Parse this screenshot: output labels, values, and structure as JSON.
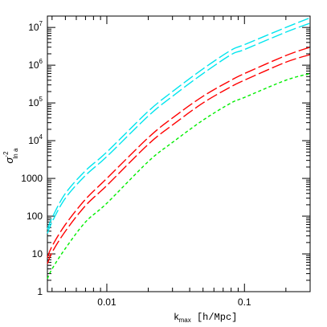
{
  "chart_data": {
    "type": "line",
    "xscale": "log",
    "yscale": "log",
    "xlim": [
      0.0037,
      0.3
    ],
    "ylim": [
      1,
      20000000
    ],
    "grid": false,
    "legend": "none",
    "xlabel": {
      "main": "k",
      "sub": "max",
      "rest": " [h/Mpc]"
    },
    "ylabel": {
      "main": "σ",
      "sub": "ln a",
      "sup": "-2"
    },
    "x_ticks": [
      {
        "value": 0.01,
        "label": "0.01"
      },
      {
        "value": 0.1,
        "label": "0.1"
      }
    ],
    "y_ticks": [
      {
        "value": 1,
        "label": "1"
      },
      {
        "value": 10,
        "label": "10"
      },
      {
        "value": 100,
        "label": "100"
      },
      {
        "value": 1000,
        "label": "1000"
      },
      {
        "value": 10000,
        "label": "10",
        "exp": "4"
      },
      {
        "value": 100000,
        "label": "10",
        "exp": "5"
      },
      {
        "value": 1000000,
        "label": "10",
        "exp": "6"
      },
      {
        "value": 10000000,
        "label": "10",
        "exp": "7"
      }
    ],
    "series": [
      {
        "color": "#00e5ee",
        "dash": "long",
        "x": [
          0.0037,
          0.004,
          0.005,
          0.007,
          0.01,
          0.02,
          0.03,
          0.05,
          0.08,
          0.1,
          0.2,
          0.3
        ],
        "y": [
          45,
          90,
          400,
          1600,
          5000,
          60000,
          200000,
          800000,
          2500000,
          3500000,
          10000000,
          18000000
        ]
      },
      {
        "color": "#00e5ee",
        "dash": "long",
        "x": [
          0.0037,
          0.004,
          0.005,
          0.007,
          0.01,
          0.02,
          0.03,
          0.05,
          0.08,
          0.1,
          0.2,
          0.3
        ],
        "y": [
          35,
          70,
          300,
          1200,
          3800,
          45000,
          150000,
          600000,
          1900000,
          2600000,
          7500000,
          13000000
        ]
      },
      {
        "color": "#ff0000",
        "dash": "long",
        "x": [
          0.0037,
          0.004,
          0.005,
          0.007,
          0.01,
          0.02,
          0.03,
          0.05,
          0.08,
          0.1,
          0.2,
          0.3
        ],
        "y": [
          8,
          16,
          60,
          280,
          1000,
          12000,
          40000,
          150000,
          400000,
          600000,
          1800000,
          3000000
        ]
      },
      {
        "color": "#ff0000",
        "dash": "long",
        "x": [
          0.0037,
          0.004,
          0.005,
          0.007,
          0.01,
          0.02,
          0.03,
          0.05,
          0.08,
          0.1,
          0.2,
          0.3
        ],
        "y": [
          5.5,
          11,
          40,
          190,
          650,
          8000,
          26000,
          100000,
          270000,
          400000,
          1200000,
          1900000
        ]
      },
      {
        "color": "#00ee00",
        "dash": "short",
        "x": [
          0.0037,
          0.004,
          0.005,
          0.007,
          0.01,
          0.02,
          0.03,
          0.05,
          0.08,
          0.1,
          0.2,
          0.3
        ],
        "y": [
          2.2,
          4,
          14,
          70,
          220,
          2800,
          9000,
          35000,
          100000,
          140000,
          400000,
          600000
        ]
      }
    ]
  }
}
